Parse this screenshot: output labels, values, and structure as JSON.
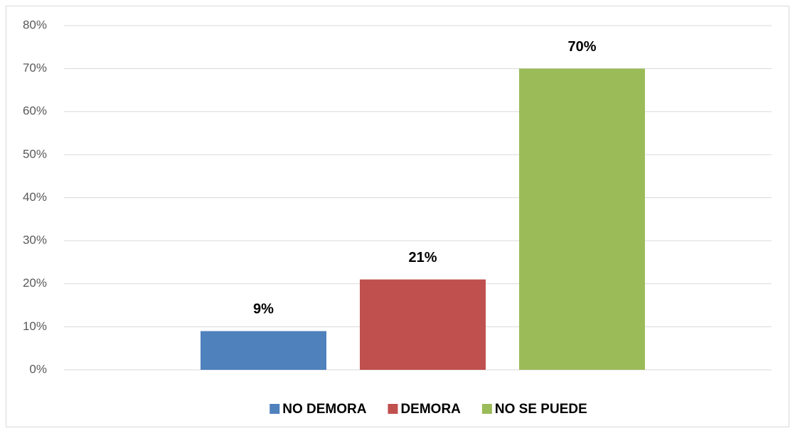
{
  "chart_data": {
    "type": "bar",
    "categories": [
      null
    ],
    "series": [
      {
        "name": "NO DEMORA",
        "color": "#4f81bd",
        "values": [
          9
        ],
        "value_labels": [
          "9%"
        ]
      },
      {
        "name": "DEMORA",
        "color": "#c0504d",
        "values": [
          21
        ],
        "value_labels": [
          "21%"
        ]
      },
      {
        "name": "NO SE PUEDE",
        "color": "#9bbb59",
        "values": [
          70
        ],
        "value_labels": [
          "70%"
        ]
      }
    ],
    "ylim": [
      0,
      80
    ],
    "yticks": [
      {
        "value": 0,
        "label": "0%"
      },
      {
        "value": 10,
        "label": "10%"
      },
      {
        "value": 20,
        "label": "20%"
      },
      {
        "value": 30,
        "label": "30%"
      },
      {
        "value": 40,
        "label": "40%"
      },
      {
        "value": 50,
        "label": "50%"
      },
      {
        "value": 60,
        "label": "60%"
      },
      {
        "value": 70,
        "label": "70%"
      },
      {
        "value": 80,
        "label": "80%"
      }
    ],
    "grid": true,
    "legend": "bottom"
  }
}
